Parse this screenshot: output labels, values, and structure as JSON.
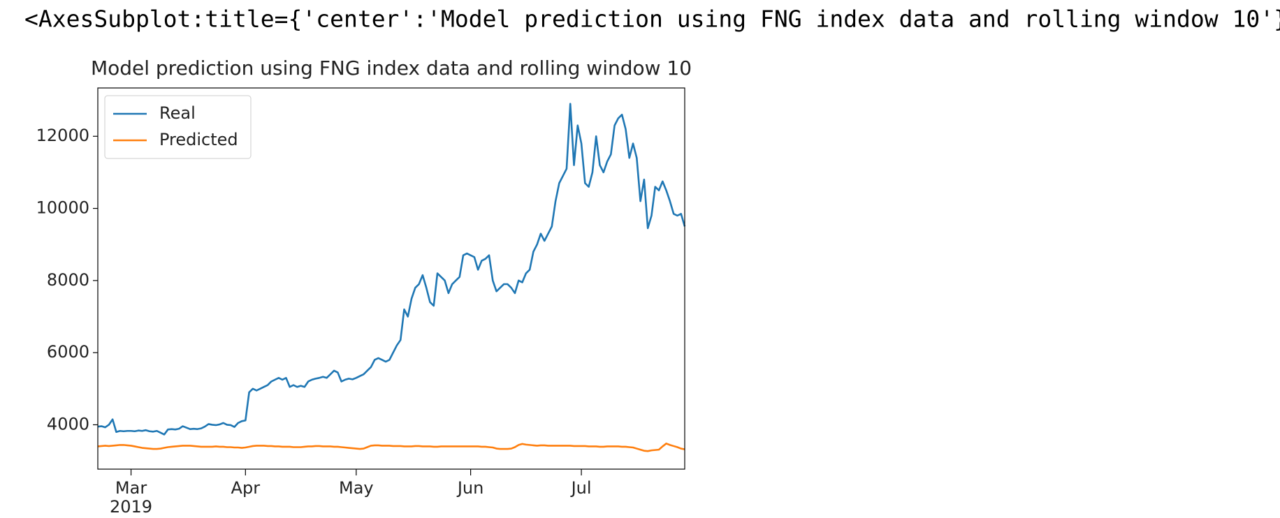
{
  "output_repr": "<AxesSubplot:title={'center':'Model prediction using FNG index data and rolling window 10'}>",
  "chart_data": {
    "type": "line",
    "title": "Model prediction using FNG index data and rolling window 10",
    "categories": [
      null,
      null,
      null,
      null,
      null,
      null,
      null,
      null,
      null,
      "Mar\n2019",
      null,
      null,
      null,
      null,
      null,
      null,
      null,
      null,
      null,
      null,
      null,
      null,
      null,
      null,
      null,
      null,
      null,
      null,
      null,
      null,
      null,
      null,
      null,
      null,
      null,
      null,
      null,
      null,
      null,
      null,
      "Apr",
      null,
      null,
      null,
      null,
      null,
      null,
      null,
      null,
      null,
      null,
      null,
      null,
      null,
      null,
      null,
      null,
      null,
      null,
      null,
      null,
      null,
      null,
      null,
      null,
      null,
      null,
      null,
      null,
      null,
      "May",
      null,
      null,
      null,
      null,
      null,
      null,
      null,
      null,
      null,
      null,
      null,
      null,
      null,
      null,
      null,
      null,
      null,
      null,
      null,
      null,
      null,
      null,
      null,
      null,
      null,
      null,
      null,
      null,
      null,
      null,
      "Jun",
      null,
      null,
      null,
      null,
      null,
      null,
      null,
      null,
      null,
      null,
      null,
      null,
      null,
      null,
      null,
      null,
      null,
      null,
      null,
      null,
      null,
      null,
      null,
      null,
      null,
      null,
      null,
      null,
      null,
      "Jul",
      null,
      null,
      null,
      null,
      null,
      null,
      null,
      null,
      null,
      null,
      null,
      null,
      null,
      null,
      null,
      null,
      null,
      null,
      null,
      null,
      null,
      null,
      null,
      null,
      null,
      null,
      null,
      null
    ],
    "series": [
      {
        "name": "Real",
        "color": "#1f77b4",
        "values": [
          3950,
          3960,
          3930,
          4000,
          4150,
          3800,
          3830,
          3820,
          3830,
          3830,
          3820,
          3840,
          3830,
          3850,
          3820,
          3810,
          3830,
          3780,
          3730,
          3870,
          3880,
          3870,
          3890,
          3960,
          3920,
          3880,
          3890,
          3880,
          3900,
          3950,
          4020,
          4000,
          3990,
          4010,
          4050,
          4000,
          3990,
          3940,
          4050,
          4100,
          4120,
          4900,
          5000,
          4950,
          5000,
          5050,
          5100,
          5200,
          5250,
          5300,
          5250,
          5300,
          5050,
          5100,
          5050,
          5080,
          5050,
          5200,
          5250,
          5280,
          5300,
          5330,
          5300,
          5400,
          5500,
          5450,
          5200,
          5250,
          5280,
          5260,
          5300,
          5350,
          5400,
          5500,
          5600,
          5800,
          5850,
          5800,
          5750,
          5800,
          6000,
          6200,
          6350,
          7200,
          7000,
          7500,
          7800,
          7900,
          8150,
          7800,
          7400,
          7300,
          8200,
          8100,
          8000,
          7650,
          7900,
          8000,
          8100,
          8700,
          8750,
          8700,
          8650,
          8300,
          8550,
          8600,
          8700,
          8000,
          7700,
          7800,
          7900,
          7900,
          7800,
          7650,
          8000,
          7950,
          8200,
          8300,
          8800,
          9000,
          9300,
          9100,
          9300,
          9500,
          10200,
          10700,
          10900,
          11100,
          12900,
          11200,
          12300,
          11800,
          10700,
          10600,
          11000,
          12000,
          11200,
          11000,
          11300,
          11500,
          12300,
          12500,
          12600,
          12200,
          11400,
          11800,
          11400,
          10200,
          10800,
          9450,
          9800,
          10600,
          10500,
          10750,
          10500,
          10200,
          9850,
          9800,
          9850,
          9500
        ]
      },
      {
        "name": "Predicted",
        "color": "#ff7f0e",
        "values": [
          3400,
          3410,
          3420,
          3410,
          3420,
          3430,
          3440,
          3440,
          3430,
          3420,
          3400,
          3380,
          3360,
          3350,
          3340,
          3330,
          3330,
          3340,
          3360,
          3380,
          3390,
          3400,
          3410,
          3420,
          3420,
          3420,
          3410,
          3400,
          3390,
          3390,
          3390,
          3390,
          3400,
          3390,
          3390,
          3380,
          3380,
          3370,
          3370,
          3360,
          3370,
          3390,
          3410,
          3420,
          3420,
          3420,
          3410,
          3410,
          3400,
          3400,
          3390,
          3390,
          3390,
          3380,
          3380,
          3380,
          3390,
          3400,
          3400,
          3410,
          3410,
          3400,
          3400,
          3400,
          3390,
          3390,
          3380,
          3370,
          3360,
          3350,
          3340,
          3330,
          3340,
          3380,
          3420,
          3430,
          3430,
          3420,
          3420,
          3420,
          3410,
          3410,
          3410,
          3400,
          3400,
          3400,
          3410,
          3410,
          3400,
          3400,
          3400,
          3390,
          3390,
          3400,
          3400,
          3400,
          3400,
          3400,
          3400,
          3400,
          3400,
          3400,
          3400,
          3400,
          3390,
          3390,
          3380,
          3370,
          3340,
          3330,
          3330,
          3330,
          3340,
          3380,
          3440,
          3470,
          3450,
          3440,
          3430,
          3420,
          3430,
          3430,
          3420,
          3420,
          3420,
          3420,
          3420,
          3420,
          3420,
          3410,
          3410,
          3410,
          3410,
          3400,
          3400,
          3400,
          3390,
          3390,
          3400,
          3400,
          3400,
          3400,
          3390,
          3390,
          3380,
          3370,
          3340,
          3310,
          3280,
          3270,
          3290,
          3300,
          3310,
          3400,
          3480,
          3440,
          3410,
          3380,
          3340,
          3320
        ]
      }
    ],
    "ylim": [
      2770,
      13340
    ],
    "yticks": [
      4000,
      6000,
      8000,
      10000,
      12000
    ],
    "grid": false,
    "legend": "upper left"
  }
}
